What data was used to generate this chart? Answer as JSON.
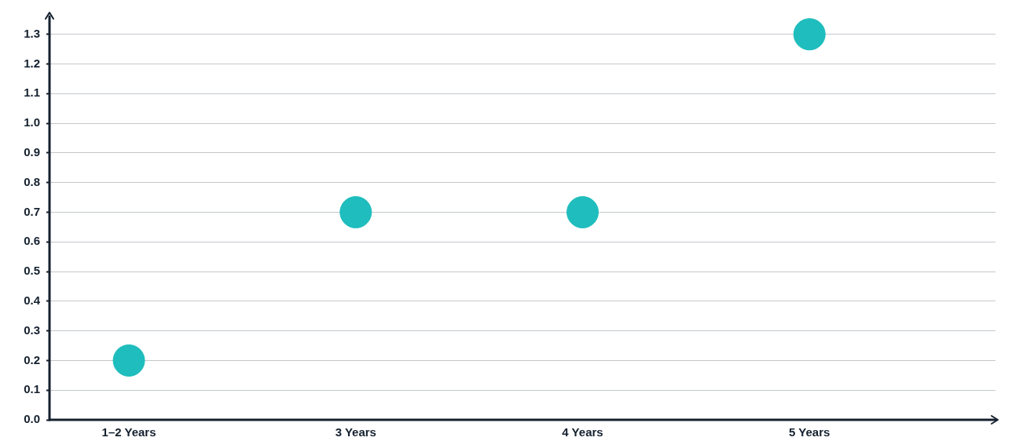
{
  "chart_data": {
    "type": "scatter",
    "categories": [
      "1–2 Years",
      "3 Years",
      "4 Years",
      "5 Years"
    ],
    "series": [
      {
        "color": "#1fbdbd",
        "values": [
          0.2,
          0.7,
          0.7,
          1.3
        ]
      }
    ],
    "ylim": [
      0,
      1.36
    ],
    "yticks": [
      {
        "value": 0,
        "label": "0.0"
      },
      0.1,
      0.2,
      0.3,
      0.4,
      0.5,
      0.6,
      0.7,
      0.8,
      0.9,
      {
        "value": 1,
        "label": "1.0"
      },
      1.1,
      1.2,
      1.3
    ],
    "grid": "y",
    "legend": false,
    "marker": "circle"
  }
}
